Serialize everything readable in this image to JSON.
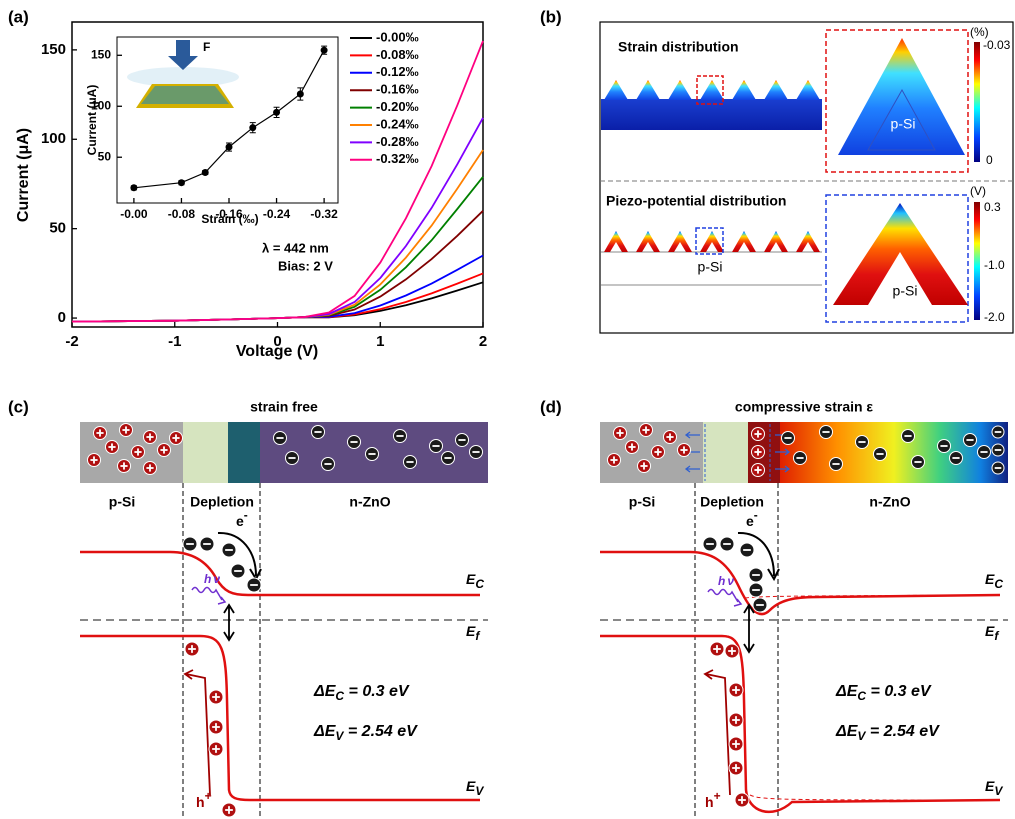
{
  "chart_data": [
    {
      "type": "line",
      "x_label": "Voltage (V)",
      "y_label": "Current (μA)",
      "x": [
        -2,
        -1,
        -0.5,
        0,
        0.25,
        0.5,
        0.75,
        1,
        1.25,
        1.5,
        1.75,
        2
      ],
      "xlim": [
        -2,
        2
      ],
      "ylim": [
        -5,
        160
      ],
      "xticks": [
        -2,
        -1,
        0,
        1,
        2
      ],
      "yticks": [
        0,
        50,
        100,
        150
      ],
      "series": [
        {
          "name": "-0.00‰",
          "color": "#000000",
          "values": [
            -2,
            -1.5,
            -0.8,
            0,
            0.5,
            0.4,
            1.6,
            4,
            7.2,
            11,
            15.4,
            20
          ]
        },
        {
          "name": "-0.08‰",
          "color": "#ff0000",
          "values": [
            -2,
            -1.5,
            -0.8,
            0,
            0.5,
            0.5,
            2,
            5,
            9,
            13.8,
            19.3,
            25
          ]
        },
        {
          "name": "-0.12‰",
          "color": "#0000ff",
          "values": [
            -2,
            -1.5,
            -0.8,
            0,
            0.5,
            0.7,
            2.8,
            7,
            12.6,
            19.3,
            27,
            35
          ]
        },
        {
          "name": "-0.16‰",
          "color": "#800000",
          "values": [
            -2,
            -1.5,
            -0.8,
            0,
            0.5,
            1.2,
            4.8,
            12,
            21.6,
            33,
            46,
            60
          ]
        },
        {
          "name": "-0.20‰",
          "color": "#008000",
          "values": [
            -2,
            -1.5,
            -0.8,
            0,
            0.5,
            1.6,
            6.3,
            15.8,
            28.4,
            43.5,
            61,
            79
          ]
        },
        {
          "name": "-0.24‰",
          "color": "#ff8000",
          "values": [
            -2,
            -1.5,
            -0.8,
            0,
            0.5,
            1.9,
            7.5,
            18.8,
            33.8,
            51.7,
            72.4,
            94
          ]
        },
        {
          "name": "-0.28‰",
          "color": "#8000ff",
          "values": [
            -2,
            -1.5,
            -0.8,
            0,
            0.5,
            2.2,
            9,
            22.4,
            40.3,
            61.6,
            86,
            112
          ]
        },
        {
          "name": "-0.32‰",
          "color": "#ff0080",
          "values": [
            -2,
            -1.5,
            -0.8,
            0,
            0.5,
            3.1,
            12.4,
            31,
            55.8,
            85,
            119,
            155
          ]
        }
      ],
      "annotations": [
        "λ = 442 nm",
        "Bias: 2 V"
      ]
    },
    {
      "type": "errorbar",
      "x_label": "Strain (‰)",
      "y_label": "Current (μA)",
      "x": [
        0,
        -0.08,
        -0.12,
        -0.16,
        -0.2,
        -0.24,
        -0.28,
        -0.32
      ],
      "values": [
        20,
        25,
        35,
        60,
        79,
        94,
        112,
        155
      ],
      "errors": [
        2,
        2,
        2,
        4,
        5,
        5,
        6,
        4
      ],
      "color": "#000000",
      "xlim": [
        0.02,
        -0.34
      ],
      "ylim": [
        10,
        165
      ],
      "xticks": [
        {
          "value": 0,
          "label": "-0.00"
        },
        -0.08,
        -0.16,
        -0.24,
        -0.32
      ],
      "yticks": [
        50,
        100,
        150
      ],
      "annotations": [
        "F"
      ]
    }
  ],
  "panels": {
    "a": {
      "label": "(a)"
    },
    "b": {
      "label": "(b)",
      "strain_title": "Strain distribution",
      "piezo_title": "Piezo-potential distribution",
      "psi_labels": [
        "p-Si",
        "p-Si",
        "p-Si"
      ],
      "strain_bar": {
        "unit": "(%)",
        "ticks": [
          "-0.03",
          "0"
        ]
      },
      "piezo_bar": {
        "unit": "(V)",
        "ticks": [
          "0.3",
          "-1.0",
          "-2.0"
        ]
      }
    },
    "c": {
      "label": "(c)",
      "title": "strain free",
      "regions": [
        "p-Si",
        "Depletion",
        "n-ZnO"
      ],
      "electron": [
        "e",
        "-"
      ],
      "hole": [
        "h",
        "+"
      ],
      "photon": [
        "h",
        "ν"
      ],
      "ec": [
        "E",
        "C"
      ],
      "ef": [
        "E",
        "f"
      ],
      "ev": [
        "E",
        "V"
      ],
      "delta_ec": [
        "ΔE",
        "C",
        " = 0.3 eV"
      ],
      "delta_ev": [
        "ΔE",
        "V",
        " = 2.54 eV"
      ]
    },
    "d": {
      "label": "(d)",
      "title": "compressive strain ε",
      "regions": [
        "p-Si",
        "Depletion",
        "n-ZnO"
      ],
      "electron": [
        "e",
        "-"
      ],
      "hole": [
        "h",
        "+"
      ],
      "photon": [
        "h",
        "ν"
      ],
      "ec": [
        "E",
        "C"
      ],
      "ef": [
        "E",
        "f"
      ],
      "ev": [
        "E",
        "V"
      ],
      "delta_ec": [
        "ΔE",
        "C",
        " = 0.3 eV"
      ],
      "delta_ev": [
        "ΔE",
        "V",
        " = 2.54 eV"
      ]
    }
  }
}
